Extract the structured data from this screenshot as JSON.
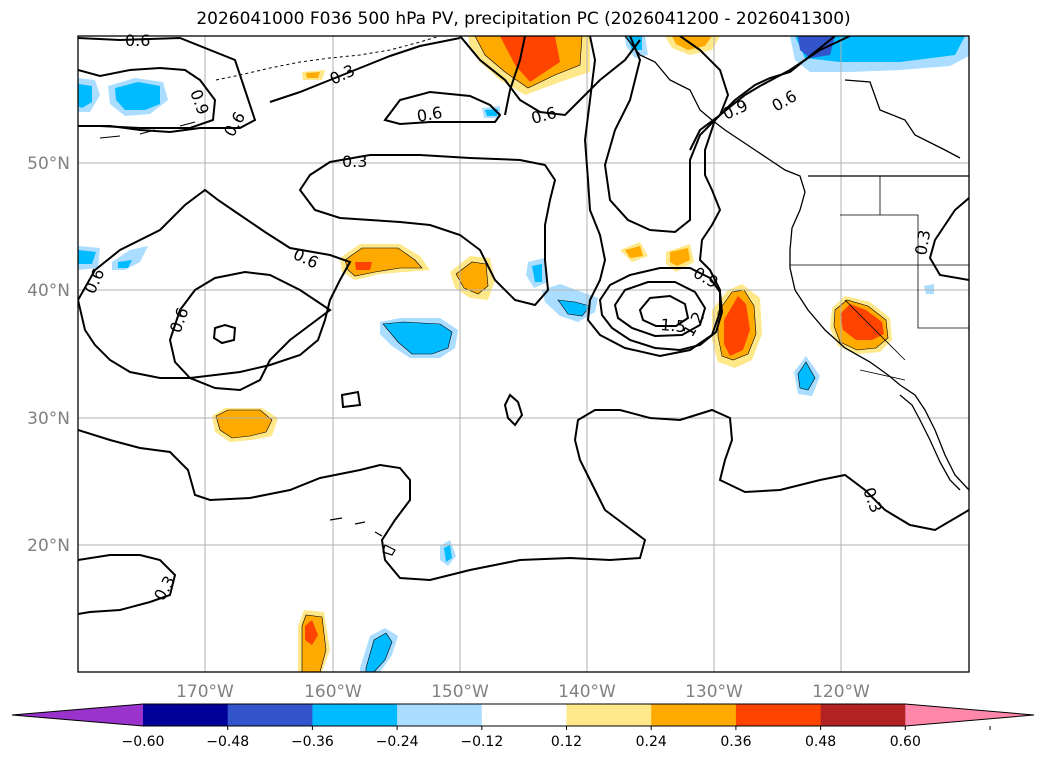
{
  "title": "2026041000 F036 500 hPa PV, precipitation PC (2026041200 - 2026041300)",
  "map": {
    "lon_range": [
      -180,
      -110
    ],
    "lat_range": [
      10,
      60
    ],
    "lat_ticks": [
      "20°N",
      "30°N",
      "40°N",
      "50°N"
    ],
    "lon_ticks": [
      "170°W",
      "160°W",
      "150°W",
      "140°W",
      "130°W",
      "120°W"
    ],
    "grid": true,
    "contour_variable": "500 hPa PV",
    "contour_labels": [
      "0.6",
      "0.9",
      "0.3",
      "0.6",
      "0.6",
      "0.6",
      "0.6",
      "0.9",
      "0.6",
      "0.3",
      "0.6",
      "0.6",
      "0.9",
      "0.3",
      "0.9",
      "1.5",
      "1.2",
      "0.3",
      "0.3"
    ]
  },
  "colorbar": {
    "extend": "both",
    "tick_labels": [
      "−0.60",
      "−0.48",
      "−0.36",
      "−0.24",
      "−0.12",
      "0.12",
      "0.24",
      "0.36",
      "0.48",
      "0.60"
    ],
    "colors": [
      "#9933cc",
      "#000099",
      "#3355cc",
      "#00bbff",
      "#aaddff",
      "#ffffff",
      "#ffe88a",
      "#ffaa00",
      "#ff4400",
      "#b22222",
      "#ff88aa"
    ]
  }
}
